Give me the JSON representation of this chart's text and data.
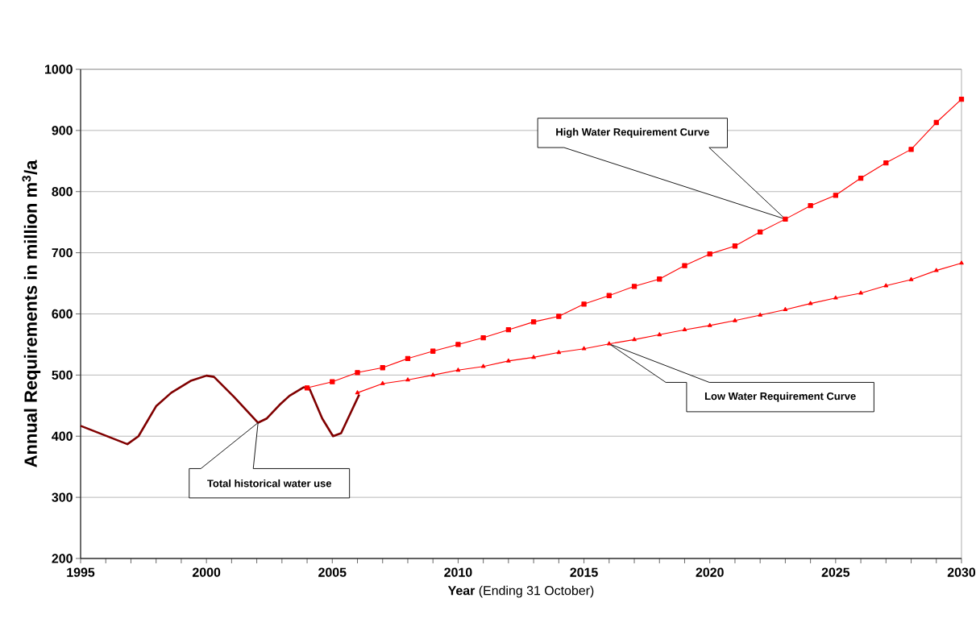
{
  "chart_data": {
    "type": "line",
    "xlabel": "**Year** (Ending 31 October)",
    "ylabel": "Annual Requirements in million m$^{3}$/a",
    "xlim": [
      1995,
      2030
    ],
    "ylim": [
      200,
      1000
    ],
    "xticks": [
      1995,
      2000,
      2005,
      2010,
      2015,
      2020,
      2025,
      2030
    ],
    "yticks": [
      200,
      300,
      400,
      500,
      600,
      700,
      800,
      900,
      1000
    ],
    "grid": "y",
    "legend": false,
    "line_style": "solid",
    "series": [
      {
        "color": "#800000",
        "marker": "none",
        "x": [
          1995,
          1996.86,
          1997.3,
          1998,
          1998.6,
          1999.4,
          2000,
          2000.3,
          2001.1,
          2002.05,
          2002.4,
          2002.9,
          2003.3,
          2003.86,
          2004.1,
          2004.6,
          2005.03,
          2005.35,
          2006.07
        ],
        "values": [
          417,
          387,
          400,
          449,
          471,
          491,
          499,
          497,
          464,
          422,
          429,
          451,
          466,
          480,
          477,
          429,
          400,
          405,
          468
        ]
      },
      {
        "color": "#ff0000",
        "marker": "square",
        "x": [
          2004,
          2005,
          2006,
          2007,
          2008,
          2009,
          2010,
          2011,
          2012,
          2013,
          2014,
          2015,
          2016,
          2017,
          2018,
          2019,
          2020,
          2021,
          2022,
          2023,
          2024,
          2025,
          2026,
          2027,
          2028,
          2029,
          2030
        ],
        "values": [
          479,
          489,
          504,
          512,
          527,
          539,
          550,
          561,
          574,
          587,
          596,
          616,
          630,
          645,
          657,
          679,
          698,
          711,
          734,
          755,
          777,
          794,
          822,
          847,
          869,
          913,
          951
        ]
      },
      {
        "color": "#ff0000",
        "marker": "triangle",
        "x": [
          2006,
          2007,
          2008,
          2009,
          2010,
          2011,
          2012,
          2013,
          2014,
          2015,
          2016,
          2017,
          2018,
          2019,
          2020,
          2021,
          2022,
          2023,
          2024,
          2025,
          2026,
          2027,
          2028,
          2029,
          2030
        ],
        "values": [
          471,
          486,
          492,
          500,
          508,
          514,
          523,
          529,
          537,
          543,
          551,
          558,
          566,
          574,
          581,
          589,
          598,
          607,
          617,
          626,
          634,
          646,
          656,
          671,
          683
        ]
      }
    ],
    "annotations": [
      "High Water Requirement Curve",
      "Low Water Requirement Curve",
      "Total historical water use"
    ]
  }
}
